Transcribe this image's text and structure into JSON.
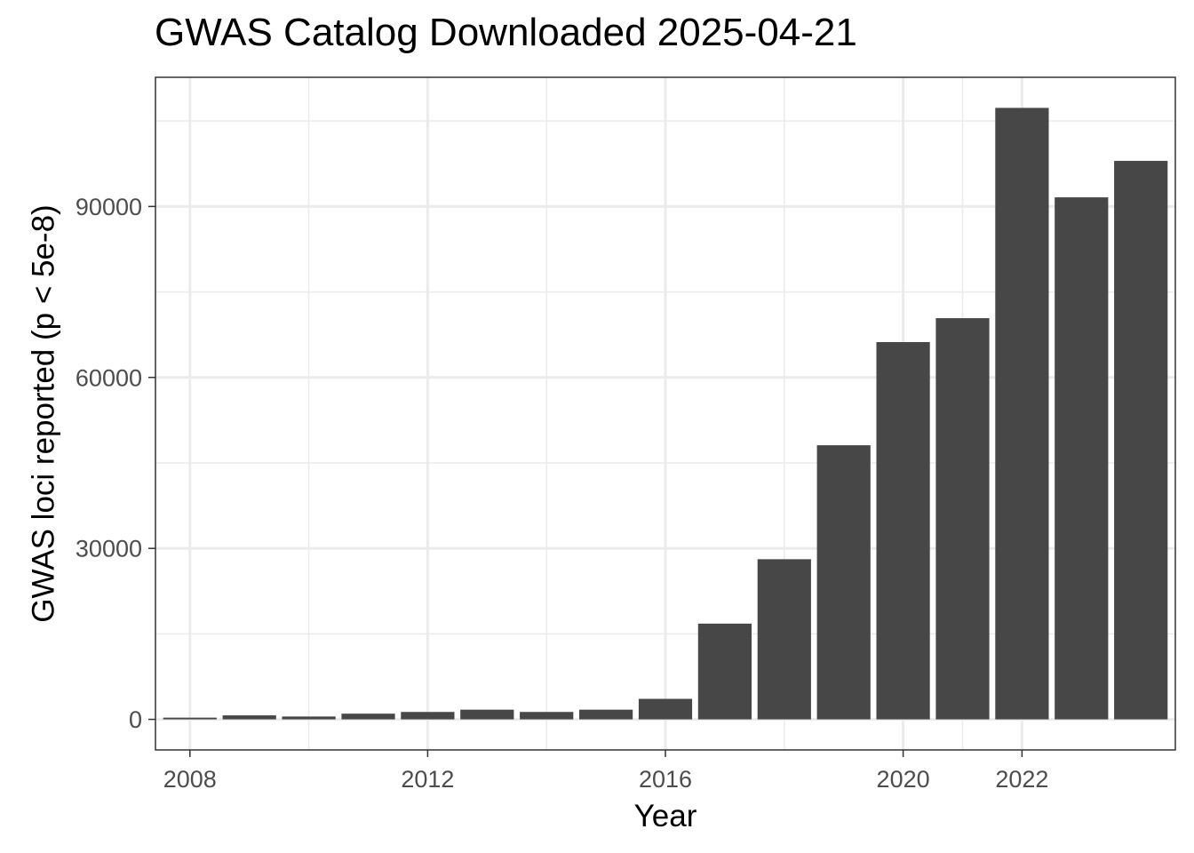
{
  "chart_data": {
    "type": "bar",
    "title": "GWAS Catalog Downloaded 2025-04-21",
    "xlabel": "Year",
    "ylabel": "GWAS loci reported (p < 5e-8)",
    "x": [
      2008,
      2009,
      2010,
      2011,
      2012,
      2013,
      2014,
      2015,
      2016,
      2017,
      2018,
      2019,
      2020,
      2021,
      2022,
      2023,
      2024
    ],
    "values": [
      300,
      700,
      500,
      1000,
      1300,
      1700,
      1300,
      1700,
      3600,
      16800,
      28100,
      48100,
      66200,
      70400,
      107300,
      91600,
      98000
    ],
    "x_ticks": [
      2008,
      2012,
      2016,
      2020,
      2022
    ],
    "y_ticks": [
      0,
      30000,
      60000,
      90000
    ],
    "xlim": [
      2007.42,
      2024.58
    ],
    "ylim": [
      -5365,
      112665
    ],
    "bar_color": "#474747",
    "panel_border_color": "#333333",
    "grid_color": "#ebebeb",
    "grid": true,
    "legend": "none"
  }
}
